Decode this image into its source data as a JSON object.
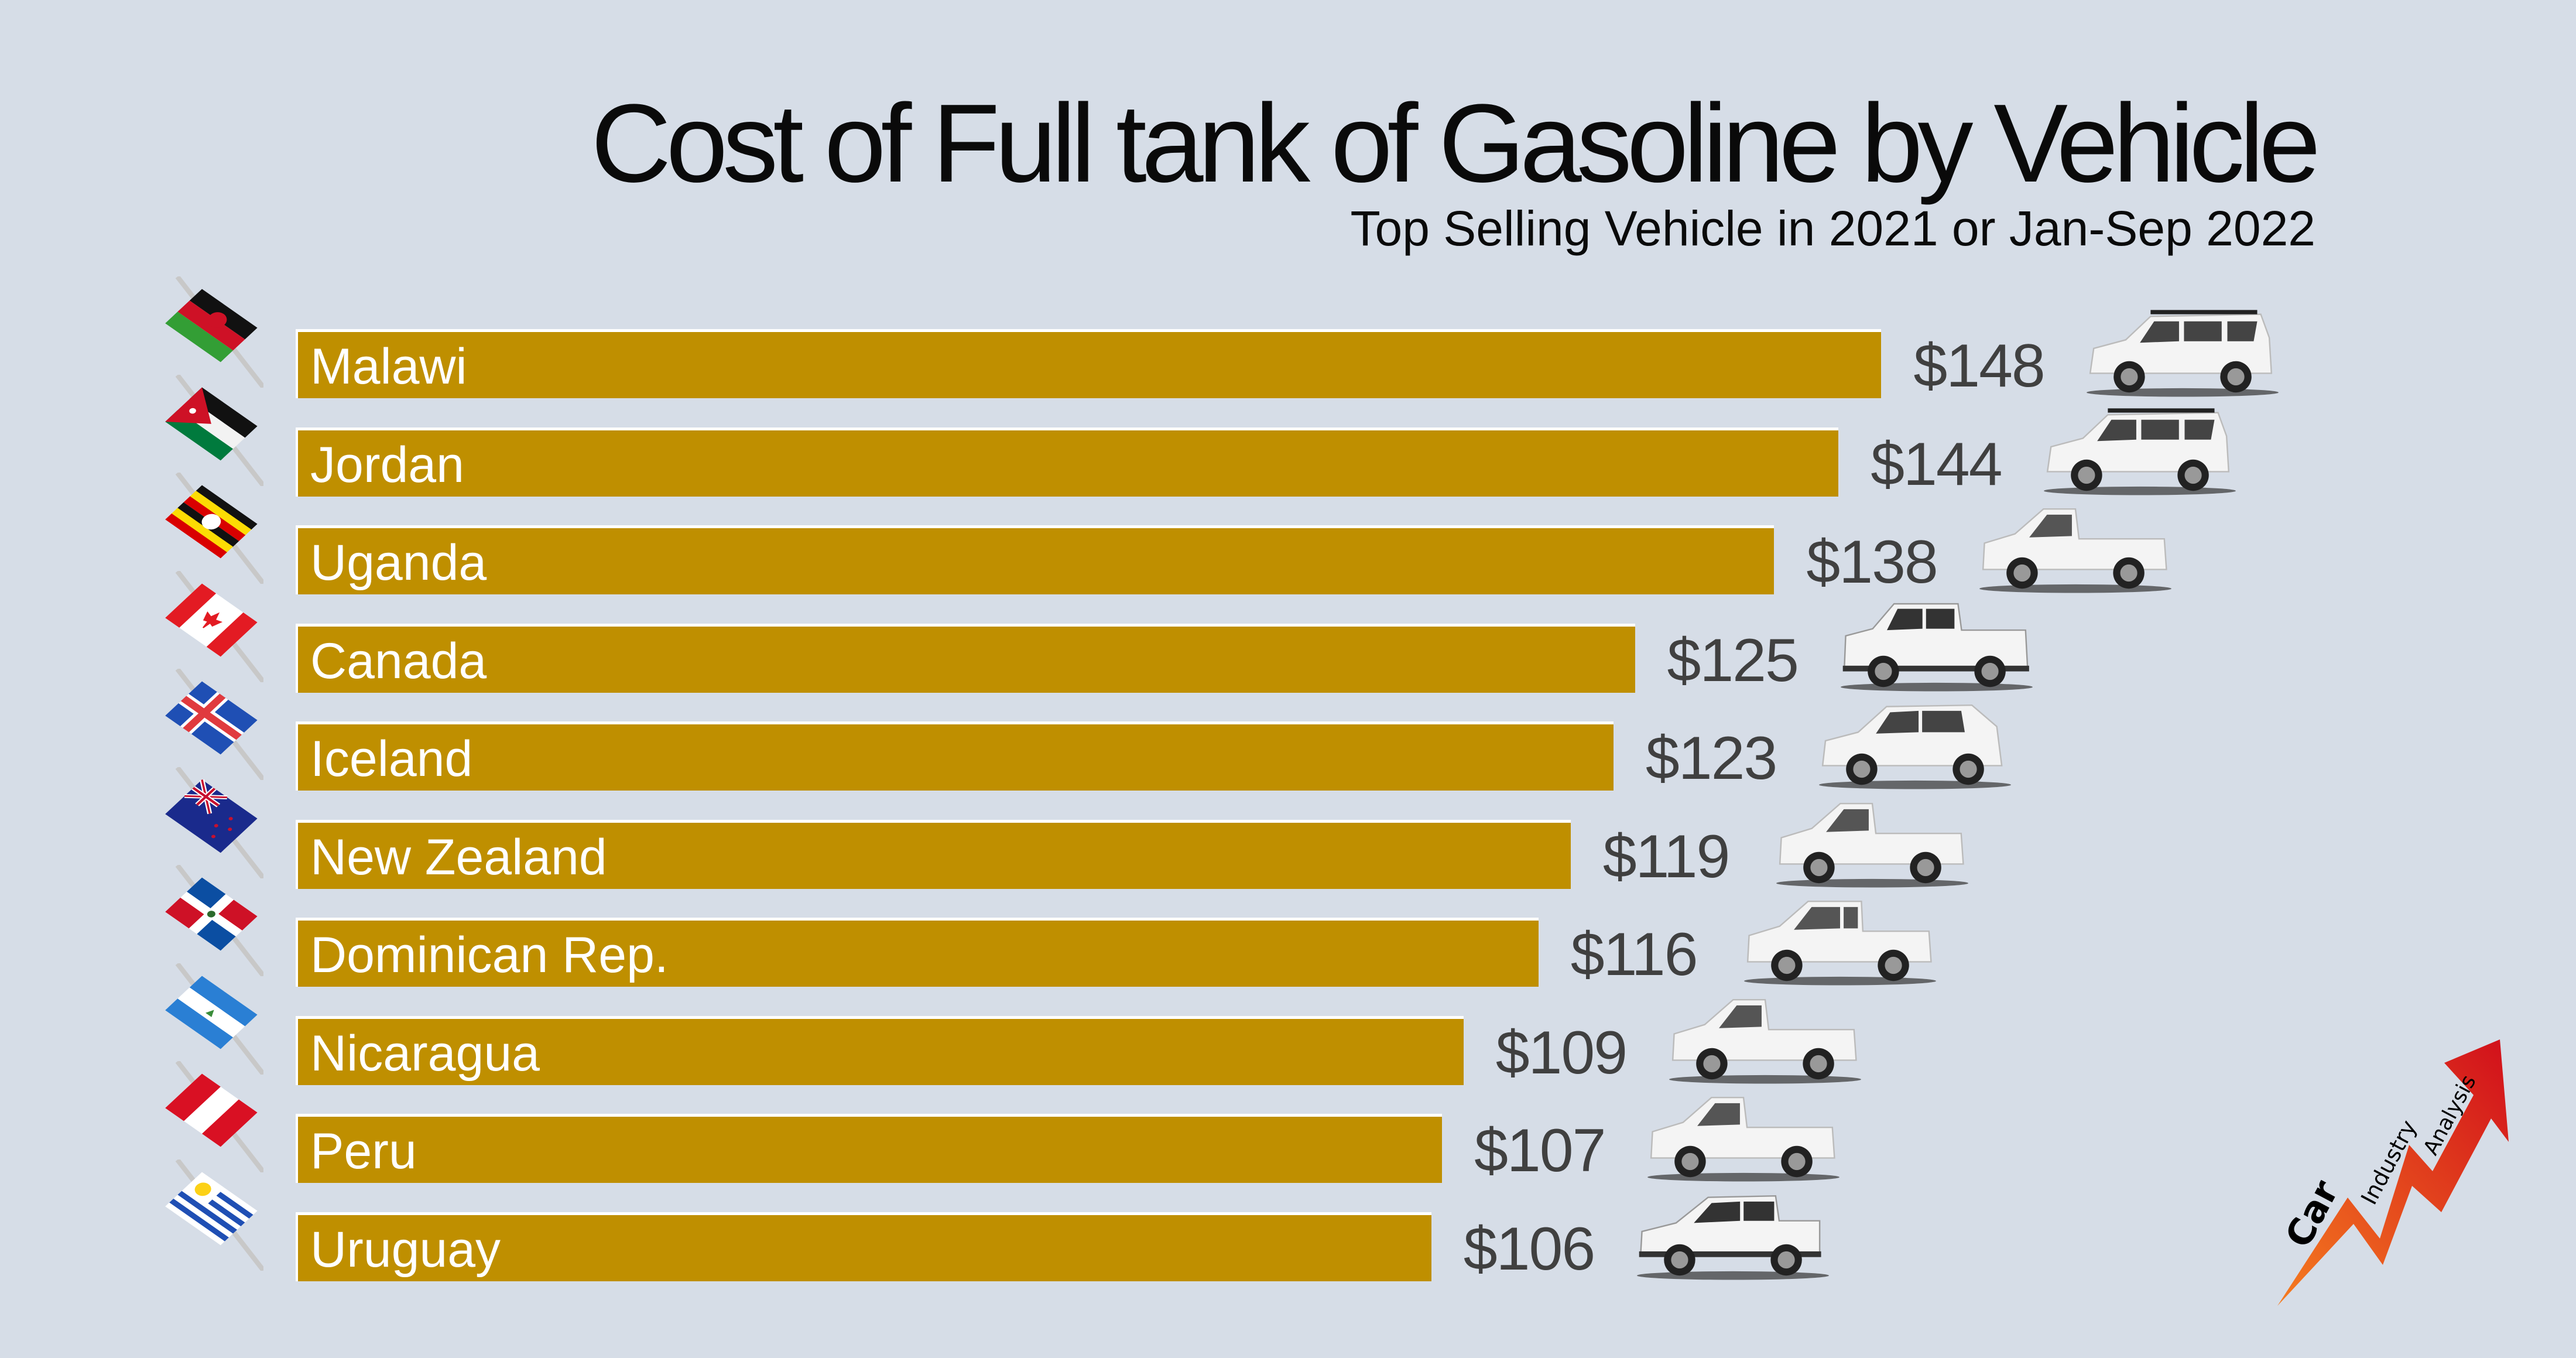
{
  "chart_data": {
    "type": "bar",
    "orientation": "horizontal",
    "title": "Cost of Full tank of Gasoline by Vehicle",
    "subtitle": "Top Selling Vehicle in 2021 or Jan-Sep 2022",
    "xlabel": "",
    "ylabel": "",
    "value_prefix": "$",
    "xlim": [
      0,
      148
    ],
    "grid": false,
    "categories": [
      "Malawi",
      "Jordan",
      "Uganda",
      "Canada",
      "Iceland",
      "New Zealand",
      "Dominican Rep.",
      "Nicaragua",
      "Peru",
      "Uruguay"
    ],
    "values": [
      148,
      144,
      138,
      125,
      123,
      119,
      116,
      109,
      107,
      106
    ],
    "value_labels": [
      "$148",
      "$144",
      "$138",
      "$125",
      "$123",
      "$119",
      "$116",
      "$109",
      "$107",
      "$106"
    ],
    "bar_color": "#bf8f00",
    "vehicle_types": [
      "suv",
      "suv",
      "pickup-single-cab",
      "pickup-full-size",
      "crossover",
      "pickup-single-cab",
      "pickup-extended-cab",
      "pickup-single-cab",
      "pickup-single-cab",
      "pickup-compact"
    ],
    "flag_icons": [
      "malawi-flag-icon",
      "jordan-flag-icon",
      "uganda-flag-icon",
      "canada-flag-icon",
      "iceland-flag-icon",
      "new-zealand-flag-icon",
      "dominican-republic-flag-icon",
      "nicaragua-flag-icon",
      "peru-flag-icon",
      "uruguay-flag-icon"
    ]
  },
  "logo": {
    "words": [
      "Car",
      "Industry",
      "Analysis"
    ],
    "icon": "rising-arrow-icon",
    "arrow_color": "#d7191c"
  },
  "colors": {
    "background": "#d6dde7",
    "bar": "#bf8f00",
    "value_text": "#404040",
    "title_text": "#0a0a0a"
  }
}
